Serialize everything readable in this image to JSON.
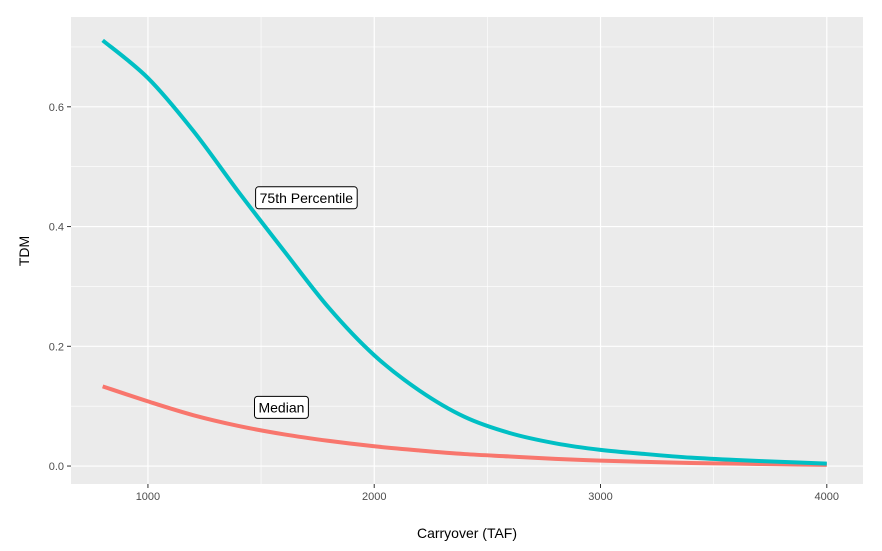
{
  "chart_data": {
    "type": "line",
    "xlabel": "Carryover (TAF)",
    "ylabel": "TDM",
    "xlim": [
      660,
      4160
    ],
    "ylim": [
      -0.03,
      0.75
    ],
    "xticks": [
      1000,
      2000,
      3000,
      4000
    ],
    "xtick_labels": [
      "1000",
      "2000",
      "3000",
      "4000"
    ],
    "yticks": [
      0.0,
      0.2,
      0.4,
      0.6
    ],
    "ytick_labels": [
      "0.0",
      "0.2",
      "0.4",
      "0.6"
    ],
    "grid": true,
    "legend": "none",
    "series": [
      {
        "label": "75th Percentile",
        "color": "#00BFC4",
        "x": [
          800,
          1000,
          1200,
          1400,
          1600,
          1800,
          2000,
          2200,
          2400,
          2600,
          2800,
          3000,
          3200,
          3400,
          3600,
          3800,
          4000
        ],
        "y": [
          0.711,
          0.648,
          0.56,
          0.458,
          0.36,
          0.264,
          0.185,
          0.126,
          0.082,
          0.055,
          0.038,
          0.027,
          0.02,
          0.014,
          0.01,
          0.007,
          0.004
        ]
      },
      {
        "label": "Median",
        "color": "#F8766D",
        "x": [
          800,
          1000,
          1200,
          1400,
          1600,
          1800,
          2000,
          2200,
          2400,
          2600,
          2800,
          3000,
          3200,
          3400,
          3600,
          3800,
          4000
        ],
        "y": [
          0.133,
          0.108,
          0.085,
          0.067,
          0.053,
          0.042,
          0.033,
          0.026,
          0.02,
          0.016,
          0.012,
          0.009,
          0.007,
          0.005,
          0.004,
          0.003,
          0.002
        ]
      }
    ],
    "annotations": [
      {
        "text": "75th Percentile",
        "x": 1700,
        "y": 0.448
      },
      {
        "text": "Median",
        "x": 1590,
        "y": 0.098
      }
    ]
  }
}
